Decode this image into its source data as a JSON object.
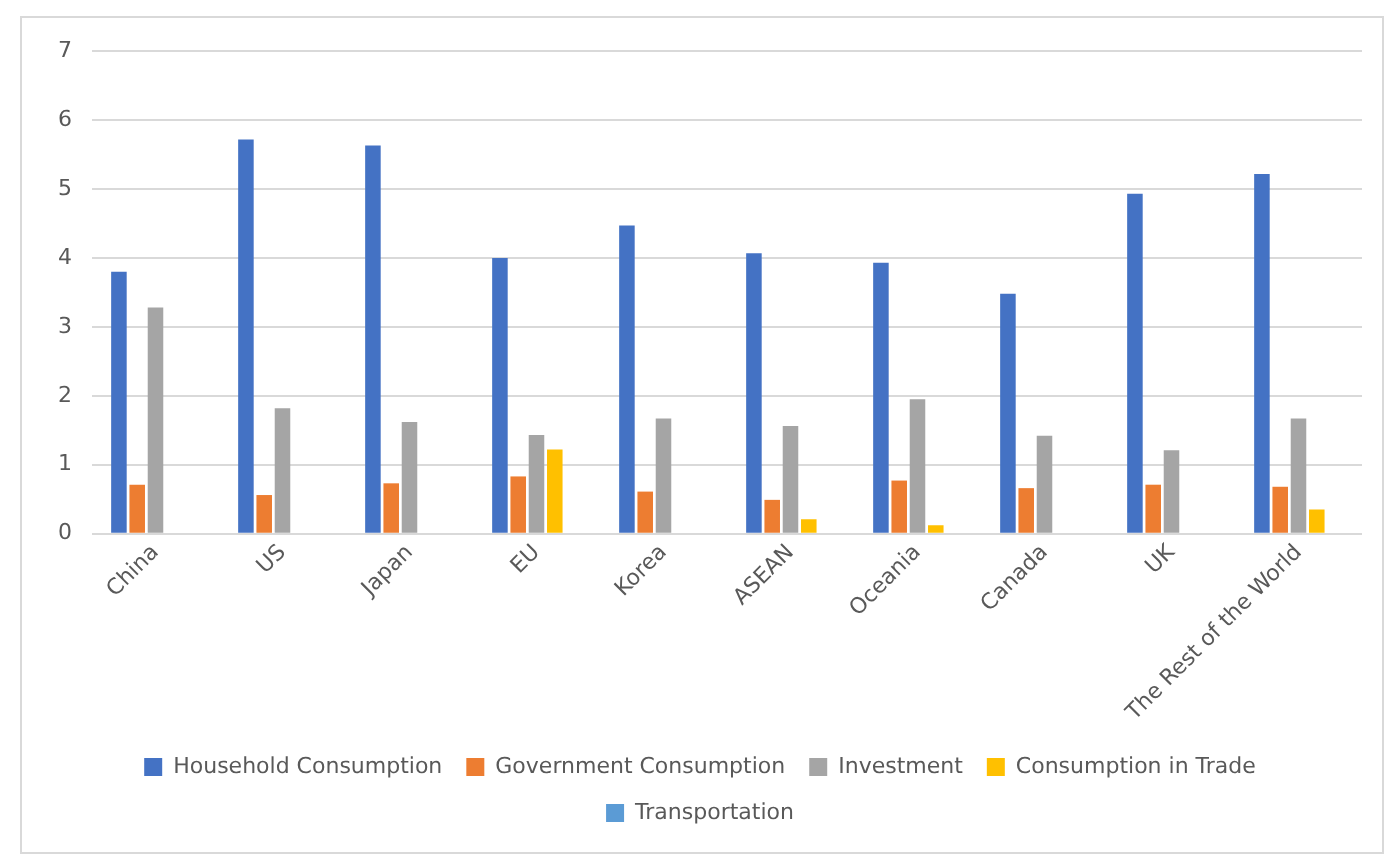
{
  "chart_data": {
    "type": "bar",
    "categories": [
      "China",
      "US",
      "Japan",
      "EU",
      "Korea",
      "ASEAN",
      "Oceania",
      "Canada",
      "UK",
      "The Rest of the World"
    ],
    "series": [
      {
        "name": "Household Consumption",
        "color": "#4472c4",
        "values": [
          3.8,
          5.72,
          5.63,
          4.0,
          4.47,
          4.07,
          3.93,
          3.48,
          4.93,
          5.22
        ]
      },
      {
        "name": "Government Consumption",
        "color": "#ed7d31",
        "values": [
          0.71,
          0.56,
          0.73,
          0.83,
          0.61,
          0.49,
          0.77,
          0.66,
          0.71,
          0.68
        ]
      },
      {
        "name": "Investment",
        "color": "#a5a5a5",
        "values": [
          3.28,
          1.82,
          1.62,
          1.43,
          1.67,
          1.56,
          1.95,
          1.42,
          1.21,
          1.67
        ]
      },
      {
        "name": "Consumption in Trade",
        "color": "#ffc000",
        "values": [
          0,
          0,
          0,
          1.22,
          0,
          0.21,
          0.12,
          0,
          0,
          0.35
        ]
      },
      {
        "name": "Transportation",
        "color": "#5b9bd5",
        "values": [
          0,
          0,
          0,
          0,
          0,
          0,
          0,
          0,
          0,
          0
        ]
      }
    ],
    "ylim": [
      0,
      7
    ],
    "yticks": [
      0,
      1,
      2,
      3,
      4,
      5,
      6,
      7
    ],
    "grid": "y",
    "legend": "bottom"
  }
}
